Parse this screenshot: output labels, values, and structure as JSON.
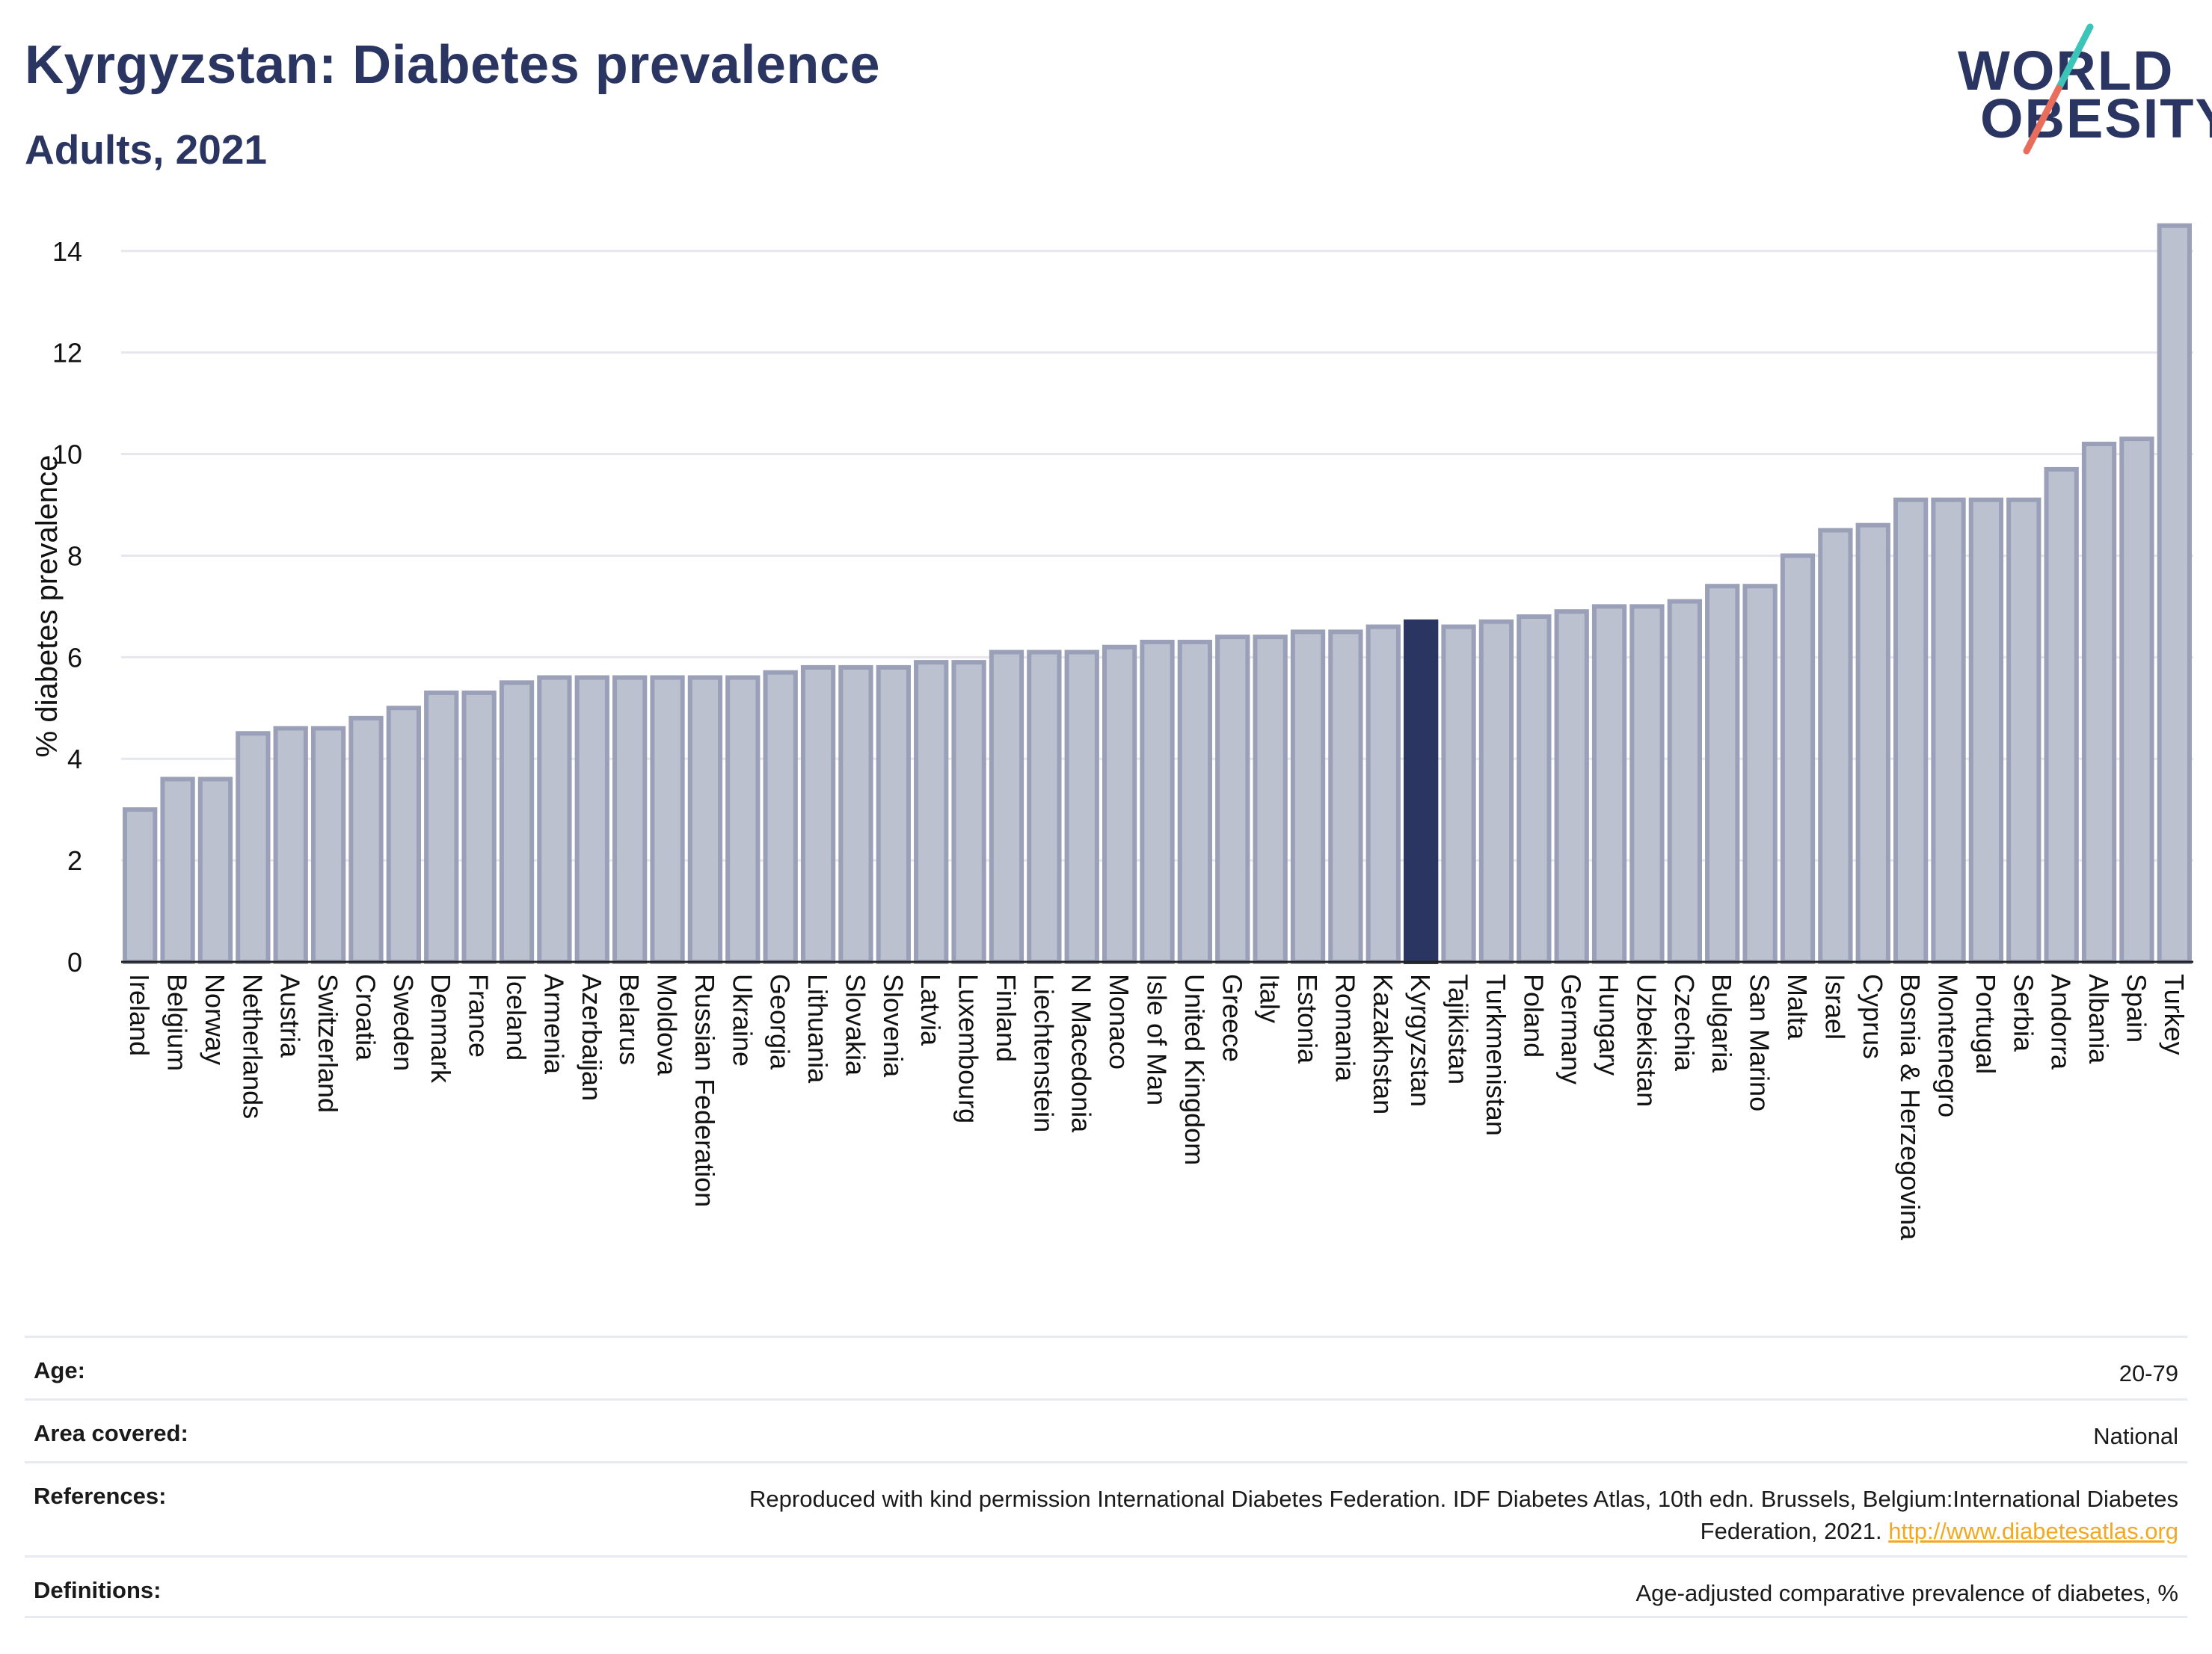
{
  "header": {
    "title": "Kyrgyzstan: Diabetes prevalence",
    "subtitle": "Adults, 2021"
  },
  "logo": {
    "line1": "WORLD",
    "line2": "OBESITY"
  },
  "colors": {
    "bar": "#bcc1d0",
    "bar_edge": "#9aa0b8",
    "highlight": "#2a3561",
    "grid": "#e6e7ee",
    "logo_teal": "#3cc4b9",
    "logo_coral": "#e86d5d"
  },
  "chart_data": {
    "type": "bar",
    "ylabel": "% diabetes prevalence",
    "ylim": [
      0,
      14.6
    ],
    "yticks": [
      0,
      2,
      4,
      6,
      8,
      10,
      12,
      14
    ],
    "grid": true,
    "highlight": "Kyrgyzstan",
    "categories": [
      "Ireland",
      "Belgium",
      "Norway",
      "Netherlands",
      "Austria",
      "Switzerland",
      "Croatia",
      "Sweden",
      "Denmark",
      "France",
      "Iceland",
      "Armenia",
      "Azerbaijan",
      "Belarus",
      "Moldova",
      "Russian Federation",
      "Ukraine",
      "Georgia",
      "Lithuania",
      "Slovakia",
      "Slovenia",
      "Latvia",
      "Luxembourg",
      "Finland",
      "Liechtenstein",
      "N Macedonia",
      "Monaco",
      "Isle of Man",
      "United Kingdom",
      "Greece",
      "Italy",
      "Estonia",
      "Romania",
      "Kazakhstan",
      "Kyrgyzstan",
      "Tajikistan",
      "Turkmenistan",
      "Poland",
      "Germany",
      "Hungary",
      "Uzbekistan",
      "Czechia",
      "Bulgaria",
      "San Marino",
      "Malta",
      "Israel",
      "Cyprus",
      "Bosnia & Herzegovina",
      "Montenegro",
      "Portugal",
      "Serbia",
      "Andorra",
      "Albania",
      "Spain",
      "Turkey"
    ],
    "values": [
      3.0,
      3.6,
      3.6,
      4.5,
      4.6,
      4.6,
      4.8,
      5.0,
      5.3,
      5.3,
      5.5,
      5.6,
      5.6,
      5.6,
      5.6,
      5.6,
      5.6,
      5.7,
      5.8,
      5.8,
      5.8,
      5.9,
      5.9,
      6.1,
      6.1,
      6.1,
      6.2,
      6.3,
      6.3,
      6.4,
      6.4,
      6.5,
      6.5,
      6.6,
      6.7,
      6.6,
      6.7,
      6.8,
      6.9,
      7.0,
      7.0,
      7.1,
      7.4,
      7.4,
      8.0,
      8.5,
      8.6,
      9.1,
      9.1,
      9.1,
      9.1,
      9.7,
      10.2,
      10.3,
      14.5
    ]
  },
  "info": [
    {
      "label": "Age:",
      "value": "20-79"
    },
    {
      "label": "Area covered:",
      "value": "National"
    },
    {
      "label": "References:",
      "value": "Reproduced with kind permission International Diabetes Federation.  IDF Diabetes Atlas, 10th edn. Brussels, Belgium:International Diabetes Federation, 2021.",
      "link": "http://www.diabetesatlas.org"
    },
    {
      "label": "Definitions:",
      "value": "Age-adjusted comparative prevalence of diabetes, %"
    }
  ]
}
